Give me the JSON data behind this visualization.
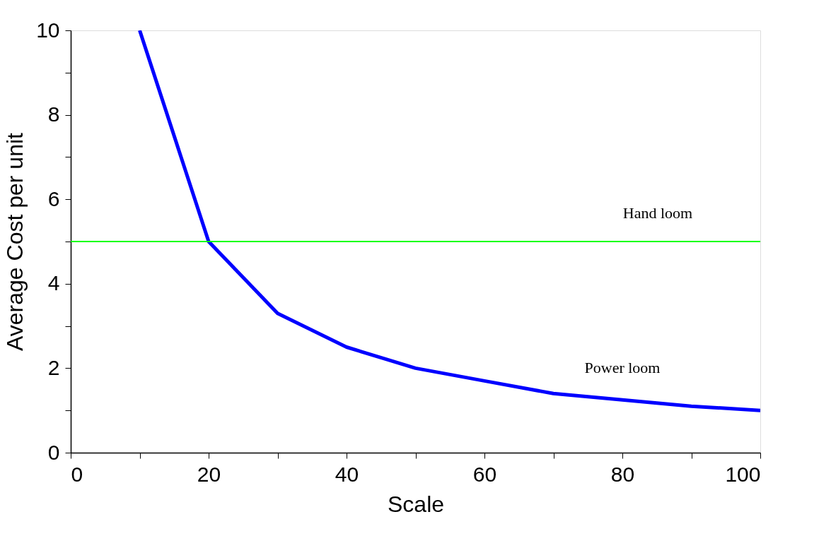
{
  "chart_data": {
    "type": "line",
    "xlabel": "Scale",
    "ylabel": "Average Cost per unit",
    "x": [
      10,
      20,
      30,
      40,
      50,
      60,
      70,
      80,
      90,
      100
    ],
    "series": [
      {
        "name": "Power loom",
        "color": "#0000ff",
        "values": [
          10,
          5,
          3.3,
          2.5,
          2.0,
          1.7,
          1.4,
          1.25,
          1.1,
          1.0
        ]
      }
    ],
    "xlim": [
      0,
      100
    ],
    "xticks": [
      0,
      {
        "value": 10,
        "label": null
      },
      20,
      {
        "value": 30,
        "label": null
      },
      40,
      {
        "value": 50,
        "label": null
      },
      60,
      {
        "value": 70,
        "label": null
      },
      80,
      {
        "value": 90,
        "label": null
      },
      100
    ],
    "ylim": [
      0,
      10
    ],
    "yticks": [
      0,
      {
        "value": 1,
        "label": null
      },
      2,
      {
        "value": 3,
        "label": null
      },
      4,
      {
        "value": 5,
        "label": null
      },
      6,
      {
        "value": 7,
        "label": null
      },
      8,
      {
        "value": 9,
        "label": null
      },
      10
    ],
    "ref_lines": [
      {
        "axis": "y",
        "value": 5,
        "label": "Hand loom",
        "color": "#00ff00"
      }
    ],
    "grid": false,
    "marker": "none",
    "line_style": "solid"
  }
}
